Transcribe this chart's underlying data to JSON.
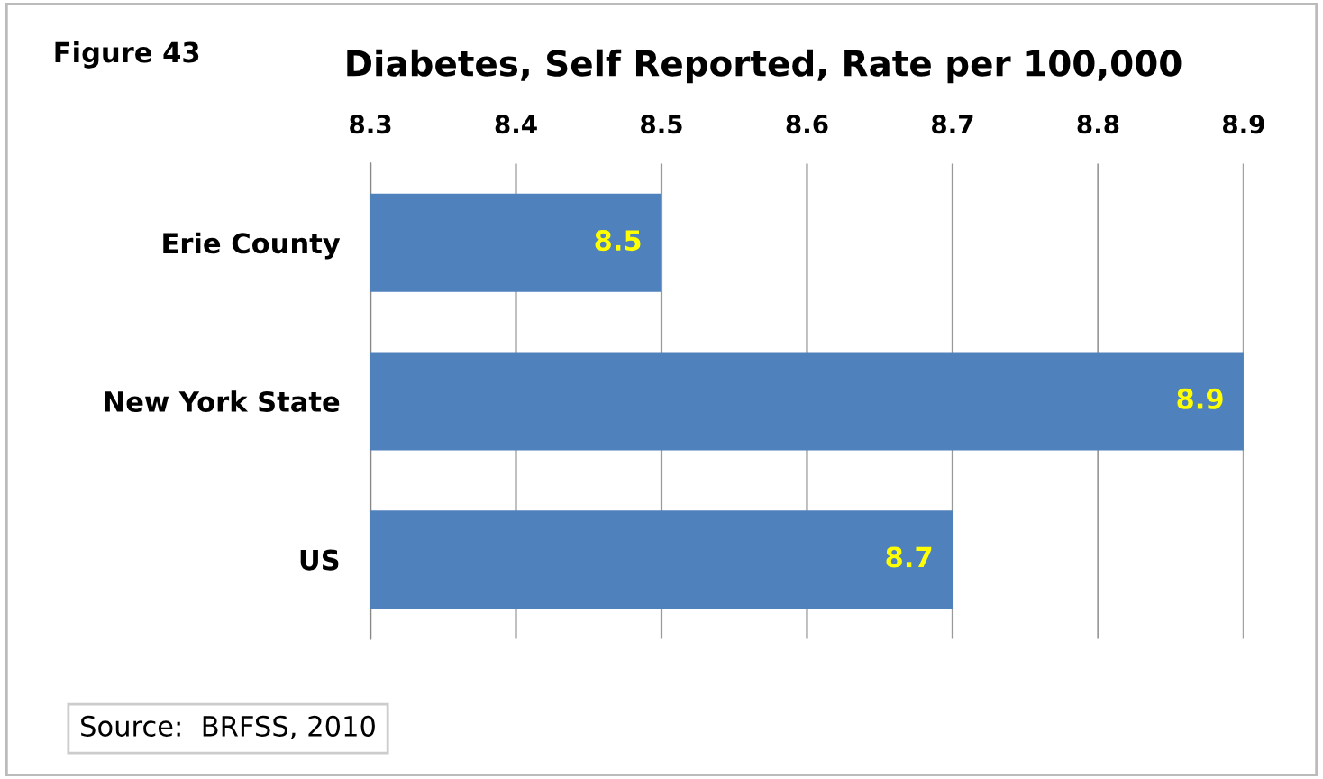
{
  "chart_data": {
    "type": "bar",
    "orientation": "horizontal",
    "title": "Diabetes, Self Reported, Rate per 100,000",
    "categories": [
      "Erie County",
      "New York State",
      "US"
    ],
    "series": [
      {
        "color": "#4f81bd",
        "values": [
          8.5,
          8.9,
          8.7
        ]
      }
    ],
    "xlim": [
      8.3,
      8.9
    ],
    "xticks": [
      8.3,
      8.4,
      8.5,
      8.6,
      8.7,
      8.8,
      8.9
    ],
    "grid": "x",
    "data_labels": true,
    "legend": false,
    "annotations": [
      "Figure 43",
      "Source:  BRFSS, 2010"
    ]
  }
}
